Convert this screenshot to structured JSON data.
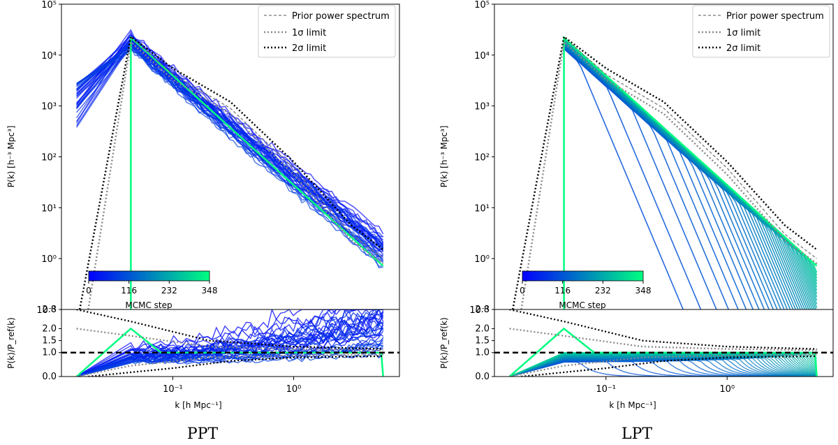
{
  "chart_data": [
    {
      "type": "line",
      "title": "PPT",
      "upper": {
        "ylabel": "P(k) [h⁻³ Mpc³]",
        "yscale": "log",
        "ylim": [
          0.1,
          100000
        ],
        "yticks": [
          "10⁻¹",
          "10⁰",
          "10¹",
          "10²",
          "10³",
          "10⁴",
          "10⁵"
        ]
      },
      "lower": {
        "ylabel": "P(k)/P_ref(k)",
        "ylim": [
          0.0,
          2.8
        ],
        "yticks": [
          "0.0",
          "1.0",
          "1.5",
          "2.0",
          "2.8"
        ],
        "reference_line": 1.0
      },
      "xlabel": "k [h Mpc⁻¹]",
      "xscale": "log",
      "xlim": [
        0.012,
        7.5
      ],
      "xticks": [
        "10⁻¹",
        "10⁰"
      ],
      "legend": {
        "placement": "top-right",
        "entries": [
          {
            "label": "Prior power spectrum",
            "style": "dashed",
            "color": "#777777"
          },
          {
            "label": "1σ limit",
            "style": "dotted",
            "color": "#888888"
          },
          {
            "label": "2σ limit",
            "style": "dotted",
            "color": "#000000"
          }
        ]
      },
      "colorbar": {
        "label": "MCMC step",
        "ticks": [
          "0",
          "116",
          "232",
          "348"
        ],
        "range": [
          0,
          348
        ],
        "colors": [
          "#0000ff",
          "#00ff80"
        ]
      },
      "series": [
        {
          "name": "Prior power spectrum",
          "x": [
            0.045,
            0.1,
            0.3,
            1.0,
            3.0,
            5.5
          ],
          "y": [
            22000,
            4200,
            900,
            60,
            3,
            1.0
          ]
        },
        {
          "name": "1σ limit",
          "x": [
            0.02,
            0.045,
            0.1,
            0.3,
            1.0,
            3.0,
            5.5
          ],
          "y": [
            0.1,
            18000,
            3300,
            700,
            45,
            2.3,
            0.8
          ]
        },
        {
          "name": "2σ limit",
          "x": [
            0.017,
            0.045,
            0.1,
            0.3,
            1.0,
            3.0,
            5.5
          ],
          "y": [
            0.1,
            23000,
            5500,
            1200,
            80,
            4.5,
            1.5
          ]
        }
      ]
    },
    {
      "type": "line",
      "title": "LPT",
      "upper": {
        "ylabel": "P(k) [h⁻³ Mpc³]",
        "yscale": "log",
        "ylim": [
          0.1,
          100000
        ],
        "yticks": [
          "10⁻¹",
          "10⁰",
          "10¹",
          "10²",
          "10³",
          "10⁴",
          "10⁵"
        ]
      },
      "lower": {
        "ylabel": "P(k)/P_ref(k)",
        "ylim": [
          0.0,
          2.8
        ],
        "yticks": [
          "0.0",
          "1.0",
          "1.5",
          "2.0",
          "2.8"
        ],
        "reference_line": 1.0
      },
      "xlabel": "k [h Mpc⁻¹]",
      "xscale": "log",
      "xlim": [
        0.012,
        7.5
      ],
      "xticks": [
        "10⁻¹",
        "10⁰"
      ],
      "legend": {
        "placement": "top-right",
        "entries": [
          {
            "label": "Prior power spectrum",
            "style": "dashed",
            "color": "#777777"
          },
          {
            "label": "1σ limit",
            "style": "dotted",
            "color": "#888888"
          },
          {
            "label": "2σ limit",
            "style": "dotted",
            "color": "#000000"
          }
        ]
      },
      "colorbar": {
        "label": "MCMC step",
        "ticks": [
          "0",
          "116",
          "232",
          "348"
        ],
        "range": [
          0,
          348
        ],
        "colors": [
          "#0000ff",
          "#00ff80"
        ]
      },
      "series": [
        {
          "name": "Prior power spectrum",
          "x": [
            0.045,
            0.1,
            0.3,
            1.0,
            3.0,
            5.5
          ],
          "y": [
            22000,
            4200,
            900,
            60,
            3,
            1.0
          ]
        },
        {
          "name": "1σ limit",
          "x": [
            0.02,
            0.045,
            0.1,
            0.3,
            1.0,
            3.0,
            5.5
          ],
          "y": [
            0.1,
            18000,
            3300,
            700,
            45,
            2.3,
            0.8
          ]
        },
        {
          "name": "2σ limit",
          "x": [
            0.017,
            0.045,
            0.1,
            0.3,
            1.0,
            3.0,
            5.5
          ],
          "y": [
            0.1,
            23000,
            5500,
            1200,
            80,
            4.5,
            1.5
          ]
        }
      ]
    }
  ]
}
